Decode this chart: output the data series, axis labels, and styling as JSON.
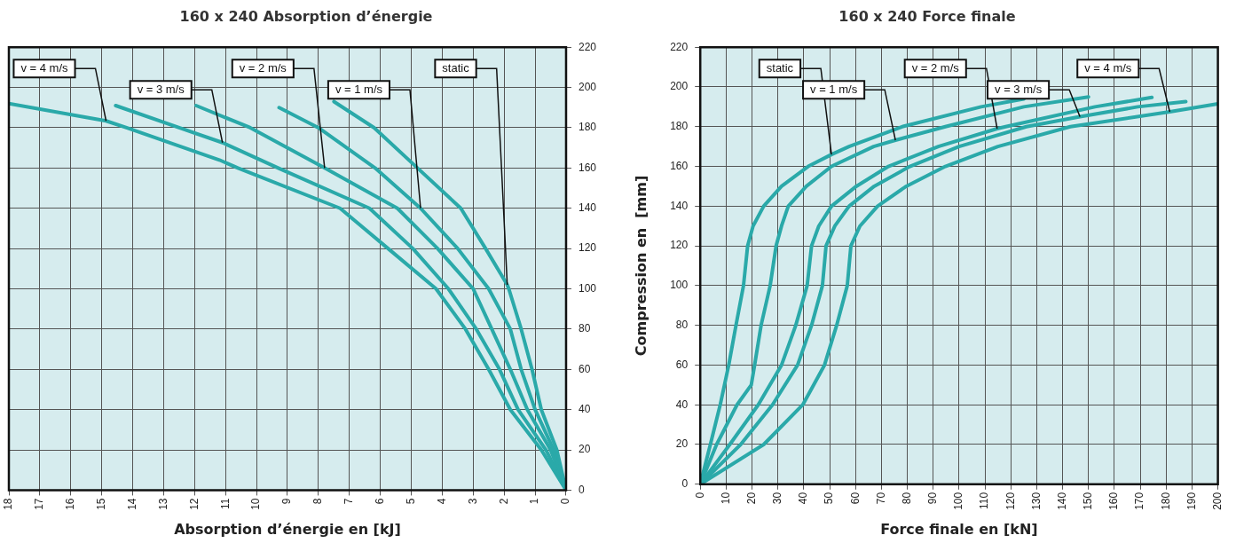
{
  "chart_data": [
    {
      "type": "line",
      "title": "160 x 240 Absorption d’énergie",
      "xlabel": "Absorption d’énergie en [kJ]",
      "xlim": [
        18,
        0
      ],
      "xticks": [
        18,
        17,
        16,
        15,
        14,
        13,
        12,
        11,
        10,
        9,
        8,
        7,
        6,
        5,
        4,
        3,
        2,
        1,
        0
      ],
      "ylim": [
        0,
        220
      ],
      "yticks": [
        0,
        20,
        40,
        60,
        80,
        100,
        120,
        140,
        160,
        180,
        200,
        220
      ],
      "grid": true,
      "legend": false,
      "marker": "none",
      "line_style": "solid",
      "series": [
        {
          "color": "#2aa9a9",
          "x": [
            7.5,
            6.2,
            4.8,
            3.4,
            2.6,
            1.9,
            1.85,
            1.45,
            1.1,
            0.8,
            0.3,
            0
          ],
          "values": [
            193,
            180,
            160,
            140,
            120,
            102,
            100,
            80,
            60,
            40,
            20,
            0
          ]
        },
        {
          "color": "#2aa9a9",
          "x": [
            9.27,
            8.0,
            6.17,
            4.7,
            3.5,
            2.5,
            1.8,
            1.45,
            1.0,
            0.4,
            0
          ],
          "values": [
            190,
            180,
            160,
            140,
            120,
            100,
            80,
            60,
            40,
            20,
            0
          ]
        },
        {
          "color": "#2aa9a9",
          "x": [
            11.95,
            10.2,
            7.8,
            5.45,
            4.15,
            3.0,
            2.4,
            1.8,
            1.25,
            0.5,
            0
          ],
          "values": [
            191,
            180,
            160,
            140,
            120,
            100,
            80,
            60,
            40,
            20,
            0
          ]
        },
        {
          "color": "#2aa9a9",
          "x": [
            14.55,
            12.5,
            11.1,
            9.3,
            6.35,
            4.95,
            3.8,
            2.9,
            2.15,
            1.55,
            0.65,
            0
          ],
          "values": [
            191,
            180,
            172.6,
            160,
            140,
            120,
            100,
            80,
            60,
            40,
            20,
            0
          ]
        },
        {
          "color": "#2aa9a9",
          "x": [
            18,
            14.86,
            14.2,
            11.2,
            10.6,
            7.3,
            5.75,
            4.2,
            3.25,
            2.5,
            1.8,
            0.8,
            0
          ],
          "values": [
            192,
            183.4,
            180,
            164,
            160,
            140,
            120,
            100,
            80,
            60,
            40,
            20,
            0
          ]
        }
      ],
      "annotations": [
        {
          "text": "static",
          "x": 1.9,
          "y": 102
        },
        {
          "text": "v = 1 m/s",
          "x": 4.7,
          "y": 140
        },
        {
          "text": "v = 2 m/s",
          "x": 7.8,
          "y": 160
        },
        {
          "text": "v = 3 m/s",
          "x": 11.1,
          "y": 172.6
        },
        {
          "text": "v = 4 m/s",
          "x": 14.86,
          "y": 183.4
        }
      ]
    },
    {
      "type": "line",
      "title": "160 x 240 Force finale",
      "xlabel": "Force finale en [kN]",
      "ylabel": "Compression en  [mm]",
      "xlim": [
        0,
        200
      ],
      "xticks": [
        0,
        10,
        20,
        30,
        40,
        50,
        60,
        70,
        80,
        90,
        100,
        110,
        120,
        130,
        140,
        150,
        160,
        170,
        180,
        190,
        200
      ],
      "ylim": [
        0,
        220
      ],
      "yticks": [
        0,
        20,
        40,
        60,
        80,
        100,
        120,
        140,
        160,
        180,
        200,
        220
      ],
      "grid": true,
      "legend": false,
      "marker": "none",
      "line_style": "solid",
      "series": [
        {
          "color": "#2aa9a9",
          "x": [
            0,
            3.9,
            7.7,
            11,
            13.8,
            16.7,
            18.3,
            20.4,
            24.5,
            31.4,
            41.7,
            50.7,
            57.5,
            78,
            108.5,
            125
          ],
          "values": [
            0,
            20,
            40,
            60,
            80,
            100,
            120,
            130,
            140,
            150,
            160,
            166,
            170,
            180,
            190,
            194
          ]
        },
        {
          "color": "#2aa9a9",
          "x": [
            0,
            6.3,
            14.2,
            19.7,
            21,
            23.5,
            27,
            29.3,
            31.4,
            34,
            41,
            50.7,
            67,
            75.4,
            94.7,
            125,
            150
          ],
          "values": [
            0,
            20,
            40,
            50,
            60,
            80,
            100,
            120,
            130,
            140,
            150,
            160,
            170,
            173.2,
            180,
            190,
            195
          ]
        },
        {
          "color": "#2aa9a9",
          "x": [
            0,
            11.4,
            22.4,
            31.4,
            36.9,
            41.3,
            43,
            45.8,
            50.7,
            60.3,
            72.7,
            92,
            114.7,
            118,
            152.5,
            174.5
          ],
          "values": [
            0,
            20,
            40,
            60,
            80,
            100,
            120,
            130,
            140,
            150,
            160,
            170,
            179,
            180,
            190,
            194.7
          ]
        },
        {
          "color": "#2aa9a9",
          "x": [
            0,
            15.6,
            27.9,
            37.6,
            43,
            47.2,
            48.6,
            52,
            57.5,
            67.2,
            81,
            100,
            126,
            146.7,
            169,
            187.6
          ],
          "values": [
            0,
            20,
            40,
            60,
            80,
            100,
            120,
            130,
            140,
            150,
            160,
            170,
            180,
            185,
            190,
            192.6
          ]
        },
        {
          "color": "#2aa9a9",
          "x": [
            0,
            24.5,
            39.6,
            48,
            52.7,
            56.8,
            58.2,
            61.7,
            68.5,
            79.6,
            94.7,
            115,
            143,
            181.4,
            200
          ],
          "values": [
            0,
            20,
            40,
            60,
            80,
            100,
            120,
            130,
            140,
            150,
            160,
            170,
            180,
            187.5,
            191.5
          ]
        }
      ],
      "annotations": [
        {
          "text": "static",
          "x": 50.7,
          "y": 166
        },
        {
          "text": "v = 1 m/s",
          "x": 75.4,
          "y": 173.2
        },
        {
          "text": "v = 2 m/s",
          "x": 114.7,
          "y": 179
        },
        {
          "text": "v = 3 m/s",
          "x": 146.7,
          "y": 185
        },
        {
          "text": "v = 4 m/s",
          "x": 181.4,
          "y": 187.5
        }
      ]
    }
  ]
}
